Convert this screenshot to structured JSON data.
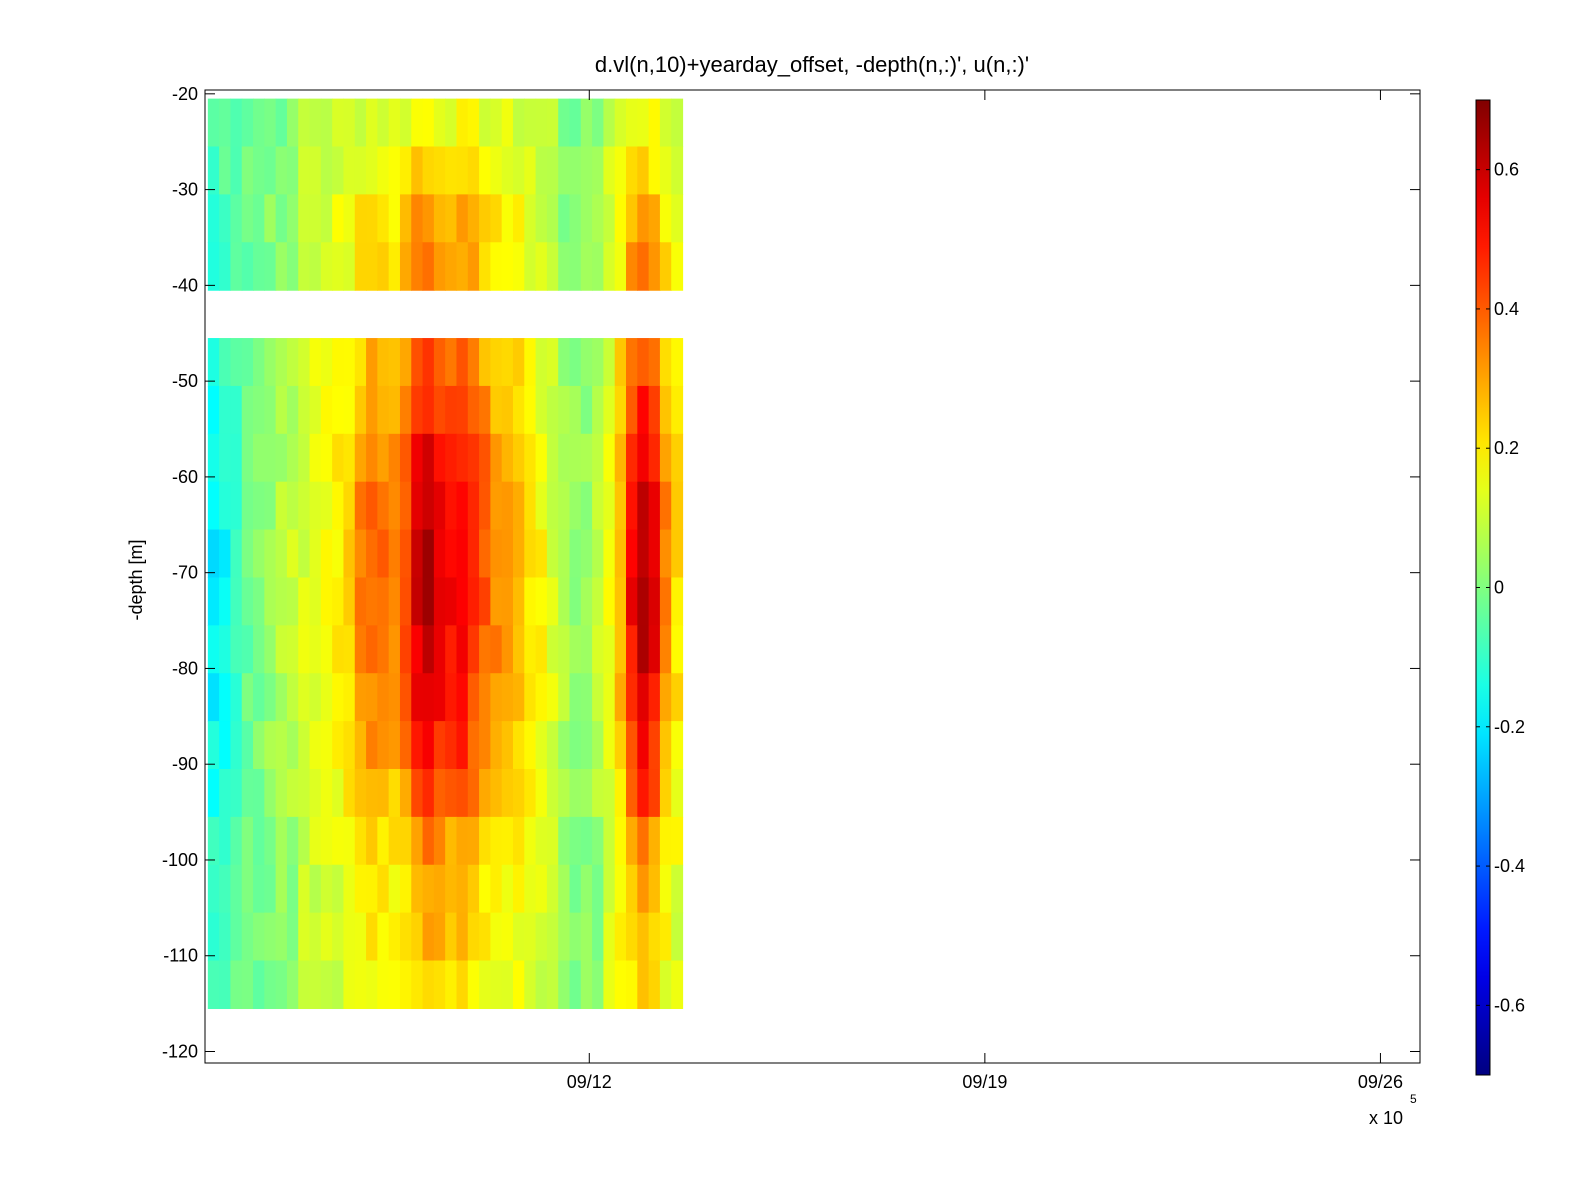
{
  "chart_data": {
    "type": "heatmap",
    "title": "d.vl(n,10)+yearday_offset, -depth(n,:)', u(n,:)'",
    "xlabel": "",
    "ylabel": "-depth [m]",
    "x_multiplier_label": "x 10",
    "x_multiplier_exponent": "5",
    "ylim": [
      -121.2,
      -19.6
    ],
    "y_ticks": [
      -20,
      -30,
      -40,
      -50,
      -60,
      -70,
      -80,
      -90,
      -100,
      -110,
      -120
    ],
    "x_axis": {
      "unit": "days",
      "range_start_offset": -6.8,
      "range_end_offset": 14.7,
      "ticks": [
        {
          "label": "09/12",
          "offset": 0
        },
        {
          "label": "09/19",
          "offset": 7
        },
        {
          "label": "09/26",
          "offset": 14
        }
      ]
    },
    "data_x_offset_range": [
      -6.75,
      1.65
    ],
    "depth_bands": [
      [
        -20.5,
        -40.5
      ],
      [
        -45.5,
        -115.5
      ]
    ],
    "depth_bins_per_band": [
      4,
      14
    ],
    "column_values": [
      -0.15,
      -0.12,
      -0.08,
      -0.02,
      0.02,
      0.05,
      0.08,
      0.1,
      0.12,
      0.14,
      0.16,
      0.18,
      0.22,
      0.3,
      0.34,
      0.32,
      0.3,
      0.38,
      0.5,
      0.55,
      0.5,
      0.46,
      0.48,
      0.42,
      0.36,
      0.3,
      0.28,
      0.25,
      0.2,
      0.16,
      0.12,
      0.08,
      0.05,
      0.06,
      0.1,
      0.16,
      0.26,
      0.46,
      0.55,
      0.48,
      0.3,
      0.2
    ],
    "depth_weights": [
      0.2,
      0.35,
      0.55,
      0.6,
      0.75,
      0.9,
      1.05,
      1.15,
      1.2,
      1.2,
      1.15,
      1.05,
      0.95,
      0.8,
      0.6,
      0.45,
      0.45,
      0.35
    ],
    "colorbar": {
      "colormap": "jet",
      "clim": [
        -0.7,
        0.7
      ],
      "ticks": [
        0.6,
        0.4,
        0.2,
        0,
        -0.2,
        -0.4,
        -0.6
      ]
    }
  }
}
